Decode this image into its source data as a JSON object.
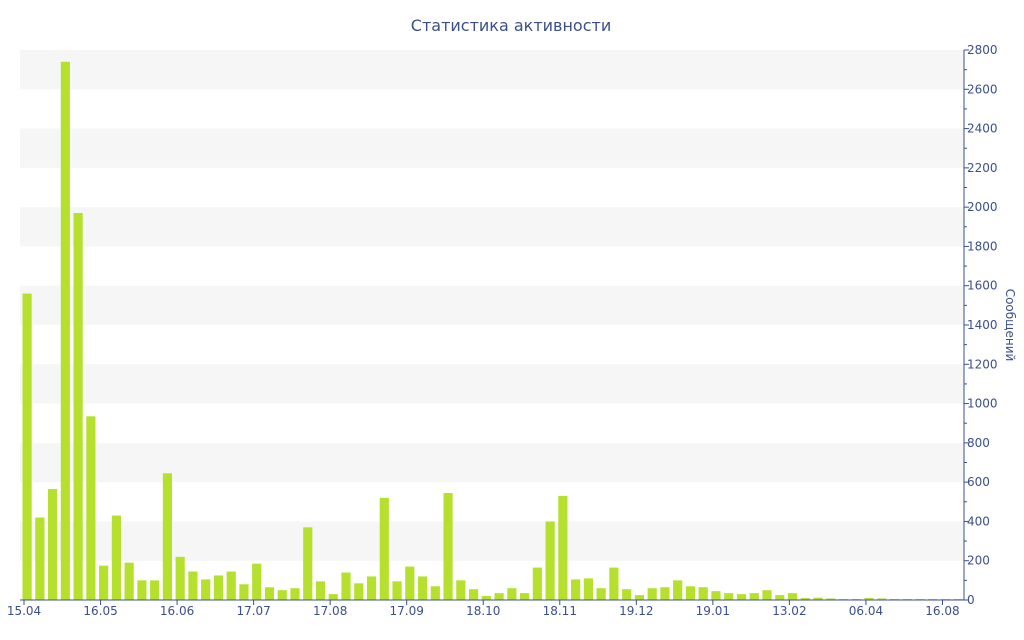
{
  "chart_data": {
    "type": "bar",
    "title": "Статистика активности",
    "ylabel": "Сообщений",
    "ylim": [
      0,
      2800
    ],
    "y_ticks": [
      0,
      200,
      400,
      600,
      800,
      1000,
      1200,
      1400,
      1600,
      1800,
      2000,
      2200,
      2400,
      2600,
      2800
    ],
    "x_tick_labels": [
      "15.04",
      "16.05",
      "16.06",
      "17.07",
      "17.08",
      "17.09",
      "18.10",
      "18.11",
      "19.12",
      "19.01",
      "13.02",
      "06.04",
      "16.08"
    ],
    "x_tick_bar_index": [
      0,
      6,
      12,
      18,
      24,
      30,
      36,
      42,
      48,
      54,
      60,
      66,
      72
    ],
    "y_axis_side": "right",
    "grid": "alternating horizontal bands",
    "values": [
      1560,
      420,
      565,
      2740,
      1970,
      935,
      175,
      430,
      190,
      100,
      100,
      645,
      220,
      145,
      105,
      125,
      145,
      80,
      185,
      65,
      50,
      60,
      370,
      95,
      30,
      140,
      85,
      120,
      520,
      95,
      170,
      120,
      70,
      545,
      100,
      55,
      20,
      35,
      60,
      35,
      165,
      400,
      530,
      105,
      110,
      60,
      165,
      55,
      25,
      60,
      65,
      100,
      70,
      65,
      45,
      35,
      30,
      35,
      50,
      25,
      35,
      10,
      12,
      8,
      5,
      5,
      10,
      8,
      5,
      5,
      5,
      5,
      5,
      5
    ],
    "bar_color": "#b6e02e",
    "text_color": "#3b4f8c",
    "band_color": "#f6f6f6"
  }
}
